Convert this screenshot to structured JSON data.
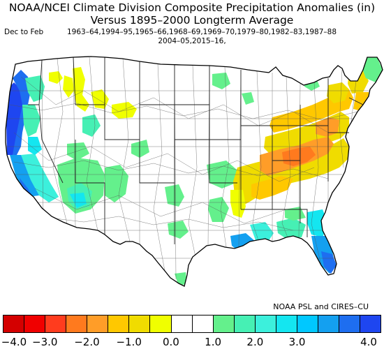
{
  "title": {
    "line1": "NOAA/NCEI Climate Division Composite Precipitation Anomalies (in)",
    "line2": "Versus 1895–2000 Longterm Average"
  },
  "subtitle": {
    "season": "Dec to Feb",
    "years_line1": "1963–64,1994–95,1965–66,1968–69,1969–70,1979–80,1982–83,1987–88",
    "years_line2": "2004–05,2015–16,"
  },
  "credit": "NOAA PSL and CIRES–CU",
  "legend": {
    "colors": [
      "#d40000",
      "#f00000",
      "#ff3c1e",
      "#ff7a1e",
      "#ff9d28",
      "#ffc800",
      "#f0dc00",
      "#f0ff00",
      "#ffffff",
      "#ffffff",
      "#64f08c",
      "#46f0b4",
      "#3cf0dc",
      "#14e6f0",
      "#00c8ff",
      "#14a0f0",
      "#1e6ef0",
      "#1e46f0"
    ],
    "ticks": [
      "−4.0",
      "−3.0",
      "−2.0",
      "−1.0",
      "0.0",
      "1.0",
      "2.0",
      "3.0",
      "4.0"
    ]
  }
}
